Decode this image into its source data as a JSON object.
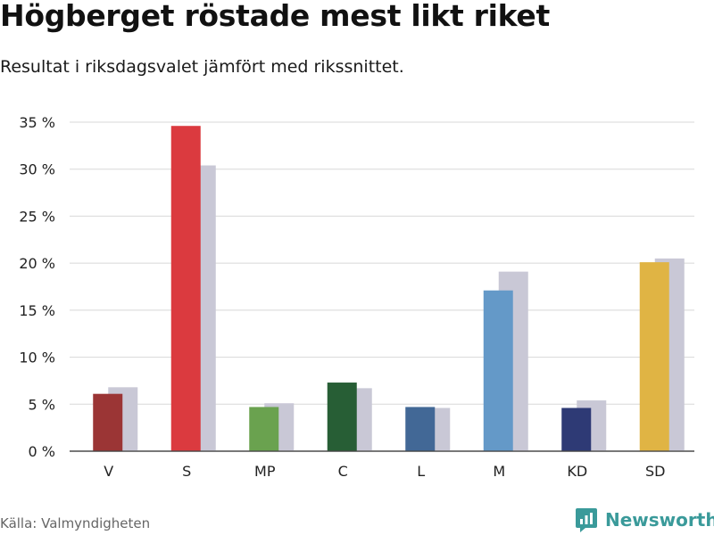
{
  "title": "Högberget röstade mest likt riket",
  "subtitle": "Resultat i riksdagsvalet jämfört med rikssnittet.",
  "source": "Källa: Valmyndigheten",
  "brand": {
    "name": "Newsworthy",
    "color": "#3a9a9a"
  },
  "chart_data": {
    "type": "bar",
    "categories": [
      "V",
      "S",
      "MP",
      "C",
      "L",
      "M",
      "KD",
      "SD"
    ],
    "series": [
      {
        "values": [
          6.1,
          34.6,
          4.7,
          7.3,
          4.7,
          17.1,
          4.6,
          20.1
        ],
        "colors": [
          "#9b3535",
          "#db3a3f",
          "#6aa24f",
          "#275e35",
          "#426896",
          "#6499c8",
          "#2e3a75",
          "#e0b444"
        ]
      },
      {
        "values": [
          6.8,
          30.4,
          5.1,
          6.7,
          4.6,
          19.1,
          5.4,
          20.5
        ],
        "color": "#c9c8d6"
      }
    ],
    "yticks": [
      "0 %",
      "5 %",
      "10 %",
      "15 %",
      "20 %",
      "25 %",
      "30 %",
      "35 %"
    ],
    "ylim": [
      0,
      35
    ],
    "grid": true,
    "legend": "none"
  }
}
